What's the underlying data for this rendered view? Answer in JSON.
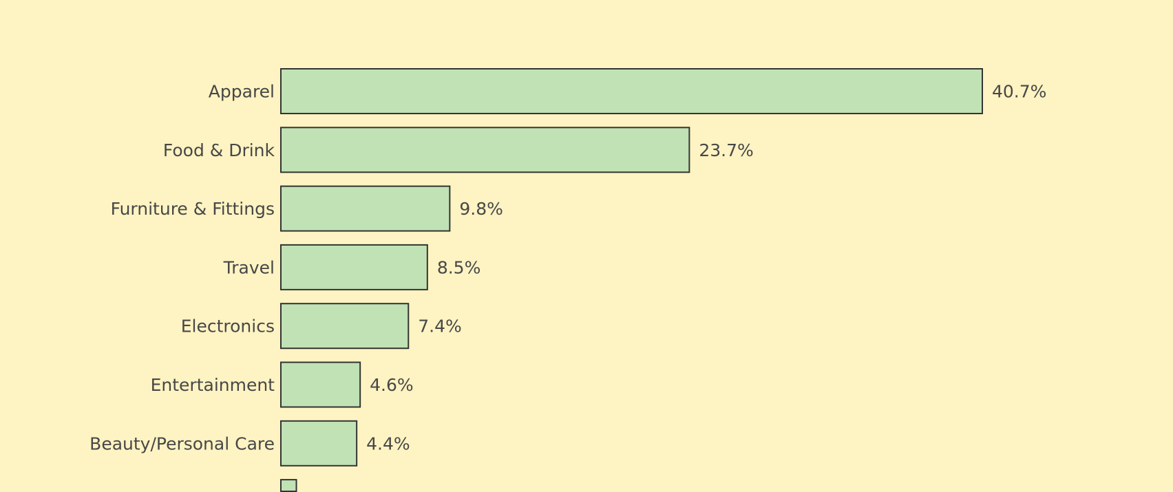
{
  "chart_data": {
    "type": "bar",
    "orientation": "horizontal",
    "categories": [
      "Apparel",
      "Food & Drink",
      "Furniture & Fittings",
      "Travel",
      "Electronics",
      "Entertainment",
      "Beauty/Personal Care",
      ""
    ],
    "values": [
      40.7,
      23.7,
      9.8,
      8.5,
      7.4,
      4.6,
      4.4,
      0.9
    ],
    "value_labels": [
      "40.7%",
      "23.7%",
      "9.8%",
      "8.5%",
      "7.4%",
      "4.6%",
      "4.4%",
      ""
    ],
    "title": "",
    "xlabel": "",
    "ylabel": "",
    "xlim": [
      0,
      40.7
    ],
    "grid": false,
    "colors": {
      "background": "#fef3c2",
      "bar_fill": "#c0e2b5",
      "bar_stroke": "#333333",
      "text": "#474747"
    }
  }
}
